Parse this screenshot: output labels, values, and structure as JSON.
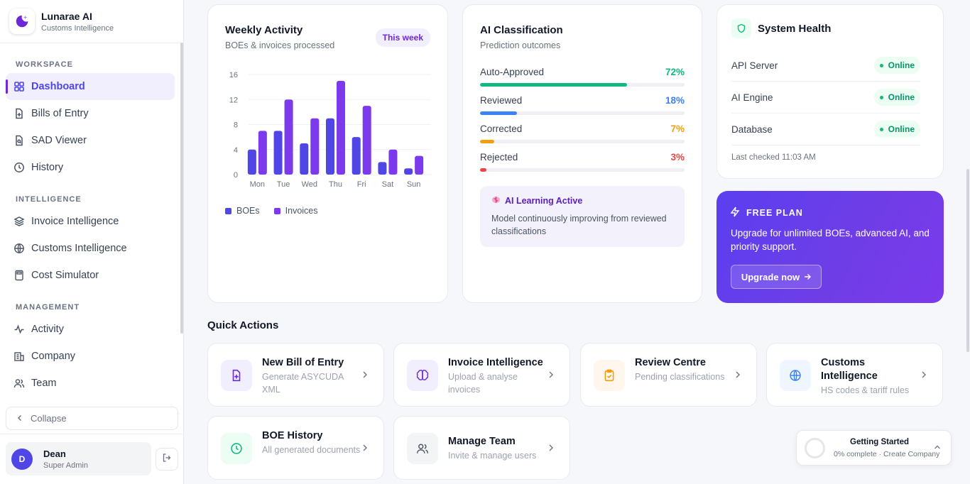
{
  "brand": {
    "name": "Lunarae AI",
    "subtitle": "Customs Intelligence"
  },
  "sidebar": {
    "sections": {
      "workspace": "WORKSPACE",
      "intelligence": "INTELLIGENCE",
      "management": "MANAGEMENT"
    },
    "items": [
      {
        "label": "Dashboard",
        "icon": "grid-icon",
        "active": true
      },
      {
        "label": "Bills of Entry",
        "icon": "file-plus-icon"
      },
      {
        "label": "SAD Viewer",
        "icon": "file-search-icon"
      },
      {
        "label": "History",
        "icon": "clock-icon"
      },
      {
        "label": "Invoice Intelligence",
        "icon": "layers-icon"
      },
      {
        "label": "Customs Intelligence",
        "icon": "globe-icon"
      },
      {
        "label": "Cost Simulator",
        "icon": "calculator-icon"
      },
      {
        "label": "Activity",
        "icon": "activity-icon"
      },
      {
        "label": "Company",
        "icon": "building-icon"
      },
      {
        "label": "Team",
        "icon": "users-icon"
      }
    ],
    "collapse_label": "Collapse"
  },
  "user": {
    "initial": "D",
    "name": "Dean",
    "role": "Super Admin"
  },
  "weekly": {
    "title": "Weekly Activity",
    "subtitle": "BOEs & invoices processed",
    "pill": "This week"
  },
  "chart_data": {
    "type": "bar",
    "categories": [
      "Mon",
      "Tue",
      "Wed",
      "Thu",
      "Fri",
      "Sat",
      "Sun"
    ],
    "series": [
      {
        "name": "BOEs",
        "values": [
          4,
          7,
          5,
          9,
          6,
          2,
          1
        ],
        "color": "#4f46e5"
      },
      {
        "name": "Invoices",
        "values": [
          7,
          12,
          9,
          15,
          11,
          4,
          3
        ],
        "color": "#7c3aed"
      }
    ],
    "y_ticks": [
      0,
      4,
      8,
      12,
      16
    ],
    "ylim": [
      0,
      16
    ],
    "grid": true,
    "legend": "bottom-left"
  },
  "classification": {
    "title": "AI Classification",
    "subtitle": "Prediction outcomes",
    "rows": [
      {
        "label": "Auto-Approved",
        "pct": "72%",
        "value": 72,
        "color": "#10b981"
      },
      {
        "label": "Reviewed",
        "pct": "18%",
        "value": 18,
        "color": "#3b82f6"
      },
      {
        "label": "Corrected",
        "pct": "7%",
        "value": 7,
        "color": "#f59e0b"
      },
      {
        "label": "Rejected",
        "pct": "3%",
        "value": 3,
        "color": "#ef4444"
      }
    ],
    "learning_title": "AI Learning Active",
    "learning_text": "Model continuously improving from reviewed classifications"
  },
  "health": {
    "title": "System Health",
    "rows": [
      {
        "label": "API Server",
        "status": "Online"
      },
      {
        "label": "AI Engine",
        "status": "Online"
      },
      {
        "label": "Database",
        "status": "Online"
      }
    ],
    "last_checked": "Last checked 11:03 AM"
  },
  "plan": {
    "label": "FREE PLAN",
    "text": "Upgrade for unlimited BOEs, advanced AI, and priority support.",
    "button": "Upgrade now"
  },
  "quick_actions": {
    "title": "Quick Actions",
    "items": [
      {
        "name": "New Bill of Entry",
        "sub": "Generate ASYCUDA XML",
        "icon": "file-plus-icon"
      },
      {
        "name": "Invoice Intelligence",
        "sub": "Upload & analyse invoices",
        "icon": "brain-icon"
      },
      {
        "name": "Review Centre",
        "sub": "Pending classifications",
        "icon": "clipboard-check-icon"
      },
      {
        "name": "Customs Intelligence",
        "sub": "HS codes & tariff rules",
        "icon": "globe-icon"
      },
      {
        "name": "BOE History",
        "sub": "All generated documents",
        "icon": "clock-icon"
      },
      {
        "name": "Manage Team",
        "sub": "Invite & manage users",
        "icon": "users-icon"
      }
    ]
  },
  "getting_started": {
    "title": "Getting Started",
    "sub": "0% complete · Create Company"
  }
}
